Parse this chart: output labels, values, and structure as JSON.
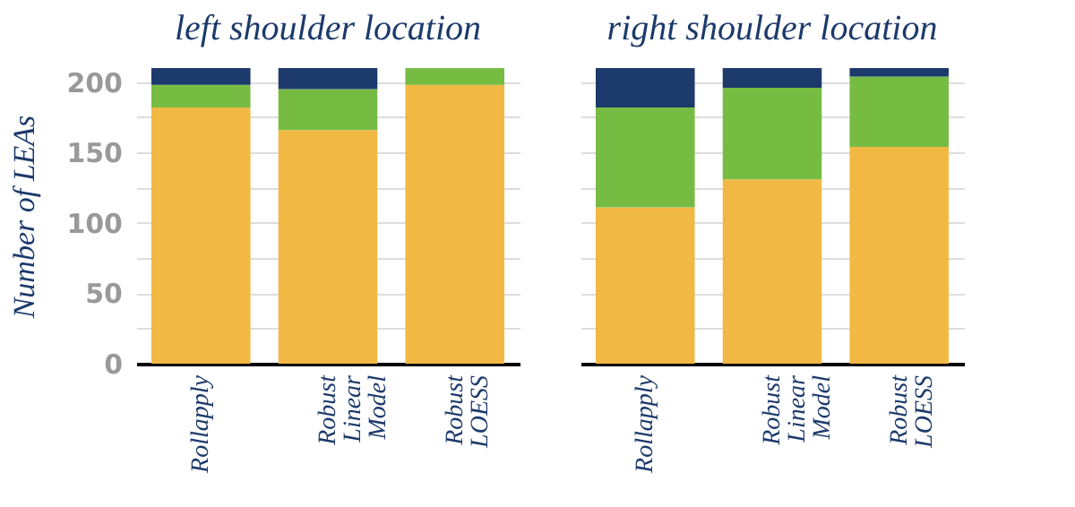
{
  "chart_data": [
    {
      "type": "bar",
      "title": "left shoulder location",
      "ylabel": "Number of LEAs",
      "categories": [
        "Rollapply",
        "Robust Linear Model",
        "Robust LOESS"
      ],
      "stacked": true,
      "grid": "y",
      "ylim": [
        0,
        210
      ],
      "yticks": [
        0,
        {
          "value": 25,
          "label": null
        },
        50,
        {
          "value": 75,
          "label": null
        },
        100,
        {
          "value": 125,
          "label": null
        },
        150,
        {
          "value": 175,
          "label": null
        },
        200
      ],
      "series": [
        {
          "color": "#f2b844",
          "values": [
            182,
            166,
            198
          ]
        },
        {
          "color": "#76bc43",
          "values": [
            16,
            29,
            12
          ]
        },
        {
          "color": "#1c3a6b",
          "values": [
            12,
            15,
            0
          ]
        }
      ]
    },
    {
      "type": "bar",
      "title": "right shoulder location",
      "categories": [
        "Rollapply",
        "Robust Linear Model",
        "Robust LOESS"
      ],
      "stacked": true,
      "grid": "y",
      "tick_labels": "x",
      "ylim": [
        0,
        210
      ],
      "yticks": [
        0,
        {
          "value": 25,
          "label": null
        },
        50,
        {
          "value": 75,
          "label": null
        },
        100,
        {
          "value": 125,
          "label": null
        },
        150,
        {
          "value": 175,
          "label": null
        },
        200
      ],
      "series": [
        {
          "color": "#f2b844",
          "values": [
            111,
            131,
            154
          ]
        },
        {
          "color": "#76bc43",
          "values": [
            71,
            65,
            50
          ]
        },
        {
          "color": "#1c3a6b",
          "values": [
            28,
            14,
            6
          ]
        }
      ]
    }
  ]
}
